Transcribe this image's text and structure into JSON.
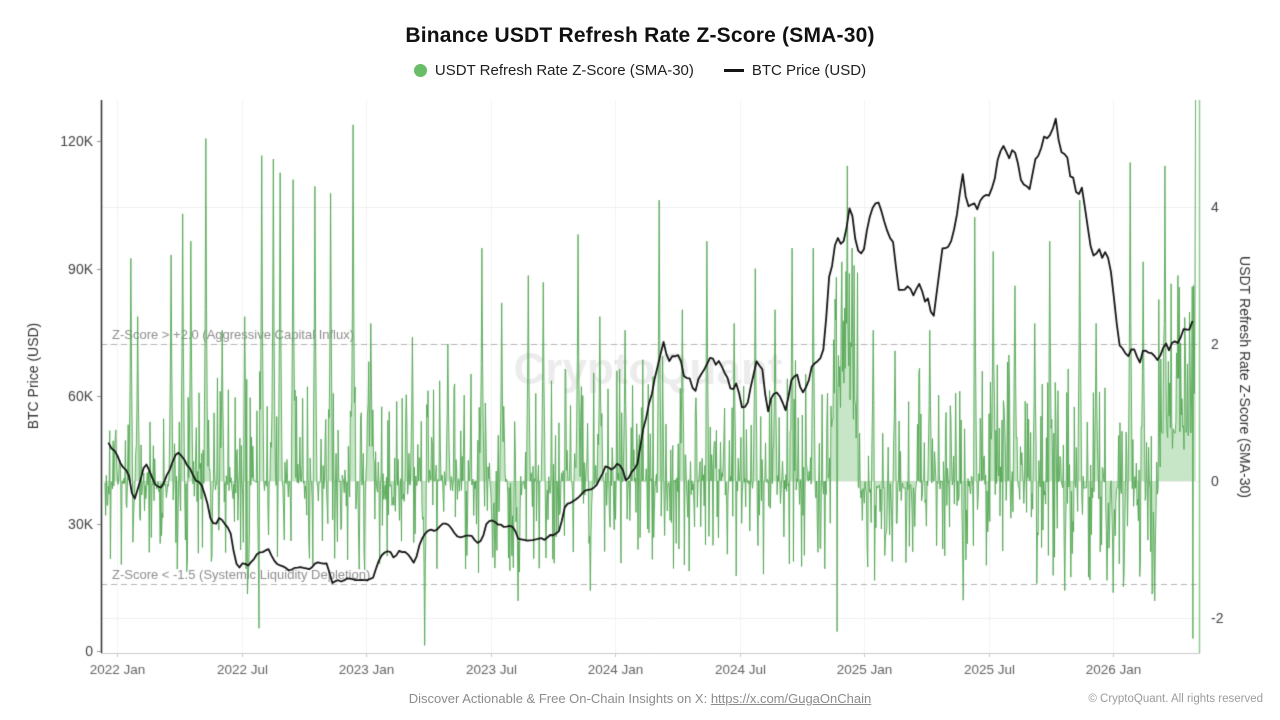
{
  "title": "Binance USDT Refresh Rate Z-Score (SMA-30)",
  "legend": {
    "zscore": {
      "label": "USDT Refresh Rate Z-Score (SMA-30)",
      "color": "#67bd68"
    },
    "btc": {
      "label": "BTC Price (USD)",
      "color": "#141414"
    }
  },
  "footer": {
    "prefix": "Discover Actionable & Free On-Chain Insights on X: ",
    "link": "https://x.com/GugaOnChain",
    "copyright": "© CryptoQuant. All rights reserved"
  },
  "watermark": "CryptoQuant",
  "colors": {
    "bar_stroke": "rgba(80,165,80,0.95)",
    "bar_fill": "rgba(130,200,130,0.45)",
    "btc_line": "#151515",
    "axis_left": "#333333",
    "axis_right": "#8fca8f",
    "axis_bottom": "#cccccc",
    "grid": "#f0f0f0",
    "threshold": "#b5b5b5",
    "threshold_text": "#909090",
    "tick_text": "#444444",
    "xtick_text": "#666666"
  },
  "chart_data": {
    "type": "mixed",
    "title": "Binance USDT Refresh Rate Z-Score (SMA-30)",
    "series": [
      {
        "name": "USDT Refresh Rate Z-Score (SMA-30)",
        "type": "area-bar",
        "axis": "right"
      },
      {
        "name": "BTC Price (USD)",
        "type": "line",
        "axis": "left"
      }
    ],
    "x_axis": {
      "start": "2021-12",
      "end": "2026-04",
      "tick_months": [
        0,
        6,
        12,
        18,
        24,
        30,
        36,
        42,
        48
      ],
      "tick_labels": [
        "2022 Jan",
        "2022 Jul",
        "2023 Jan",
        "2023 Jul",
        "2024 Jan",
        "2024 Jul",
        "2025 Jan",
        "2025 Jul",
        "2026 Jan"
      ]
    },
    "y_left": {
      "label": "BTC Price (USD)",
      "ticks": [
        {
          "v": 0,
          "label": "0"
        },
        {
          "v": 30,
          "label": "30K"
        },
        {
          "v": 60,
          "label": "60K"
        },
        {
          "v": 90,
          "label": "90K"
        },
        {
          "v": 120,
          "label": "120K"
        }
      ],
      "units": "K USD",
      "range_k": [
        0,
        129.6
      ]
    },
    "y_right": {
      "label": "USDT Refresh Rate Z-Score (SMA-30)",
      "ticks": [
        {
          "v": -2,
          "label": "-2"
        },
        {
          "v": 0,
          "label": "0"
        },
        {
          "v": 2,
          "label": "2"
        },
        {
          "v": 4,
          "label": "4"
        }
      ],
      "range": [
        -2.51,
        5.56
      ]
    },
    "thresholds": [
      {
        "z": 2.0,
        "label": "Z-Score > +2.0 (Aggressive Capital Influx)"
      },
      {
        "z": -1.5,
        "label": "Z-Score < -1.5 (Systemic Liquidity Depletion)"
      }
    ],
    "btc_price_anchors_months_kusd": [
      [
        -0.4,
        48.9
      ],
      [
        0,
        46.2
      ],
      [
        0.3,
        43
      ],
      [
        0.55,
        41.8
      ],
      [
        0.8,
        35.2
      ],
      [
        1.05,
        38.6
      ],
      [
        1.35,
        44.4
      ],
      [
        1.6,
        42.1
      ],
      [
        1.85,
        39.3
      ],
      [
        2.15,
        38.4
      ],
      [
        2.4,
        41.1
      ],
      [
        2.65,
        44.3
      ],
      [
        2.9,
        47.2
      ],
      [
        3.2,
        45.6
      ],
      [
        3.5,
        42.9
      ],
      [
        3.8,
        40.1
      ],
      [
        4.05,
        39.5
      ],
      [
        4.3,
        36
      ],
      [
        4.55,
        30.2
      ],
      [
        4.75,
        29.7
      ],
      [
        4.95,
        31.5
      ],
      [
        5.2,
        29.9
      ],
      [
        5.45,
        28.6
      ],
      [
        5.65,
        22.6
      ],
      [
        5.85,
        19.1
      ],
      [
        6.05,
        20.8
      ],
      [
        6.3,
        20
      ],
      [
        6.55,
        21.3
      ],
      [
        6.8,
        23.3
      ],
      [
        7.05,
        23.2
      ],
      [
        7.3,
        24
      ],
      [
        7.55,
        21.4
      ],
      [
        7.8,
        20.1
      ],
      [
        8.05,
        19.9
      ],
      [
        8.3,
        18.9
      ],
      [
        8.55,
        19.5
      ],
      [
        8.8,
        19.7
      ],
      [
        9.05,
        19.5
      ],
      [
        9.3,
        19.2
      ],
      [
        9.6,
        20.9
      ],
      [
        9.85,
        20.6
      ],
      [
        10.15,
        20.6
      ],
      [
        10.35,
        16
      ],
      [
        10.6,
        16.8
      ],
      [
        10.85,
        16.3
      ],
      [
        11.1,
        17.2
      ],
      [
        11.35,
        16.9
      ],
      [
        11.6,
        16.7
      ],
      [
        11.85,
        16.6
      ],
      [
        12.1,
        16.7
      ],
      [
        12.35,
        17.3
      ],
      [
        12.6,
        21.1
      ],
      [
        12.85,
        23.1
      ],
      [
        13.1,
        23.8
      ],
      [
        13.35,
        21.9
      ],
      [
        13.6,
        23.6
      ],
      [
        13.85,
        23.3
      ],
      [
        14.1,
        22.5
      ],
      [
        14.35,
        20.3
      ],
      [
        14.55,
        24.8
      ],
      [
        14.8,
        27.6
      ],
      [
        15.05,
        28.6
      ],
      [
        15.3,
        28.1
      ],
      [
        15.55,
        29.3
      ],
      [
        15.8,
        30.1
      ],
      [
        16.05,
        29.3
      ],
      [
        16.35,
        27.1
      ],
      [
        16.6,
        26.9
      ],
      [
        16.85,
        27.3
      ],
      [
        17.1,
        27
      ],
      [
        17.35,
        25.2
      ],
      [
        17.6,
        26.4
      ],
      [
        17.85,
        30.6
      ],
      [
        18.1,
        30.7
      ],
      [
        18.35,
        30
      ],
      [
        18.6,
        29.3
      ],
      [
        18.85,
        29.3
      ],
      [
        19.1,
        29.4
      ],
      [
        19.35,
        26.1
      ],
      [
        19.6,
        26.2
      ],
      [
        19.85,
        26
      ],
      [
        20.1,
        25.9
      ],
      [
        20.35,
        26.7
      ],
      [
        20.6,
        26.3
      ],
      [
        20.85,
        27.1
      ],
      [
        21.1,
        27.3
      ],
      [
        21.35,
        28.5
      ],
      [
        21.6,
        34.3
      ],
      [
        21.85,
        34.6
      ],
      [
        22.1,
        35.5
      ],
      [
        22.35,
        36.8
      ],
      [
        22.6,
        37.9
      ],
      [
        22.85,
        37.8
      ],
      [
        23.1,
        38.8
      ],
      [
        23.35,
        41.4
      ],
      [
        23.6,
        43.9
      ],
      [
        23.85,
        42.4
      ],
      [
        24.1,
        44.3
      ],
      [
        24.35,
        42.9
      ],
      [
        24.55,
        39.7
      ],
      [
        24.8,
        42.1
      ],
      [
        25.05,
        43.2
      ],
      [
        25.35,
        51.9
      ],
      [
        25.6,
        57.1
      ],
      [
        25.85,
        62.1
      ],
      [
        26.1,
        68.4
      ],
      [
        26.35,
        73.2
      ],
      [
        26.55,
        68
      ],
      [
        26.8,
        69.5
      ],
      [
        27.1,
        69.7
      ],
      [
        27.35,
        63.9
      ],
      [
        27.6,
        64.4
      ],
      [
        27.85,
        60.7
      ],
      [
        28.1,
        65
      ],
      [
        28.35,
        67
      ],
      [
        28.6,
        69.4
      ],
      [
        28.85,
        67.8
      ],
      [
        29.1,
        67.9
      ],
      [
        29.35,
        65
      ],
      [
        29.6,
        61.1
      ],
      [
        29.85,
        62.8
      ],
      [
        30.15,
        56.9
      ],
      [
        30.35,
        57.4
      ],
      [
        30.6,
        63.3
      ],
      [
        30.85,
        68.3
      ],
      [
        31.1,
        66.6
      ],
      [
        31.2,
        64.7
      ],
      [
        31.3,
        54
      ],
      [
        31.5,
        59.1
      ],
      [
        31.75,
        61.1
      ],
      [
        32,
        59.2
      ],
      [
        32.25,
        56.3
      ],
      [
        32.5,
        63.5
      ],
      [
        32.75,
        65.9
      ],
      [
        33,
        60.9
      ],
      [
        33.25,
        62.3
      ],
      [
        33.5,
        67.1
      ],
      [
        33.75,
        67.9
      ],
      [
        34,
        69.5
      ],
      [
        34.15,
        75.7
      ],
      [
        34.3,
        88.1
      ],
      [
        34.5,
        90.6
      ],
      [
        34.65,
        98.1
      ],
      [
        34.8,
        96
      ],
      [
        35,
        95.9
      ],
      [
        35.2,
        101.3
      ],
      [
        35.35,
        106.2
      ],
      [
        35.55,
        97.6
      ],
      [
        35.75,
        93.6
      ],
      [
        36,
        94.5
      ],
      [
        36.25,
        102.4
      ],
      [
        36.5,
        104.8
      ],
      [
        36.7,
        105.1
      ],
      [
        36.9,
        102.2
      ],
      [
        37.15,
        97.8
      ],
      [
        37.4,
        96.7
      ],
      [
        37.65,
        84.4
      ],
      [
        37.9,
        84.5
      ],
      [
        38.15,
        86.1
      ],
      [
        38.4,
        83.8
      ],
      [
        38.65,
        86.9
      ],
      [
        38.9,
        82.6
      ],
      [
        39.15,
        82.6
      ],
      [
        39.3,
        76.4
      ],
      [
        39.5,
        84.7
      ],
      [
        39.75,
        94.1
      ],
      [
        40,
        94.3
      ],
      [
        40.25,
        97.1
      ],
      [
        40.5,
        103.8
      ],
      [
        40.75,
        111.8
      ],
      [
        41,
        104.7
      ],
      [
        41.25,
        105.8
      ],
      [
        41.5,
        104
      ],
      [
        41.75,
        107.3
      ],
      [
        42,
        107.2
      ],
      [
        42.25,
        109
      ],
      [
        42.5,
        118.1
      ],
      [
        42.75,
        118.1
      ],
      [
        43,
        115.9
      ],
      [
        43.2,
        119.4
      ],
      [
        43.45,
        113.6
      ],
      [
        43.7,
        109.1
      ],
      [
        43.95,
        108.3
      ],
      [
        44.2,
        114.6
      ],
      [
        44.45,
        117.4
      ],
      [
        44.7,
        121.1
      ],
      [
        44.9,
        120.1
      ],
      [
        45.1,
        123.6
      ],
      [
        45.25,
        124.9
      ],
      [
        45.4,
        119.1
      ],
      [
        45.6,
        115.6
      ],
      [
        45.75,
        117.6
      ],
      [
        45.9,
        112.1
      ],
      [
        46.1,
        110.6
      ],
      [
        46.3,
        106.1
      ],
      [
        46.5,
        108.6
      ],
      [
        46.7,
        102.1
      ],
      [
        46.9,
        95.1
      ],
      [
        47.1,
        92.1
      ],
      [
        47.3,
        95.6
      ],
      [
        47.5,
        92.6
      ],
      [
        47.7,
        93.6
      ],
      [
        47.9,
        89.1
      ],
      [
        48.1,
        80.1
      ],
      [
        48.3,
        72.1
      ],
      [
        48.5,
        70.6
      ],
      [
        48.7,
        68.6
      ],
      [
        48.9,
        71.1
      ],
      [
        49.1,
        70.1
      ],
      [
        49.3,
        68.1
      ],
      [
        49.5,
        71.6
      ],
      [
        49.7,
        69.6
      ],
      [
        49.9,
        70.6
      ],
      [
        50.1,
        68.6
      ],
      [
        50.3,
        70.1
      ],
      [
        50.5,
        72.6
      ],
      [
        50.7,
        71.1
      ],
      [
        50.9,
        73.6
      ],
      [
        51.1,
        72.6
      ],
      [
        51.3,
        74.6
      ],
      [
        51.5,
        76.1
      ],
      [
        51.7,
        75.6
      ],
      [
        51.9,
        78.3
      ]
    ],
    "z_score": {
      "seed": 1337,
      "btc_jitter_seed": 77,
      "points_per_month": 30.44,
      "t_start_months": -0.58,
      "t_end_months": 52.0,
      "segments": [
        [
          -0.6,
          4,
          1.35,
          1.3,
          -0.05,
          0.45
        ],
        [
          4,
          6.5,
          1.6,
          1.45,
          -0.05,
          0.45
        ],
        [
          6.5,
          10,
          1.7,
          1.35,
          0,
          0.45
        ],
        [
          10,
          12.5,
          1.8,
          1.3,
          0,
          0.5
        ],
        [
          12.5,
          14.5,
          1.4,
          1.25,
          -0.05,
          0.45
        ],
        [
          14.5,
          17,
          1.5,
          1.3,
          0,
          0.45
        ],
        [
          17,
          21,
          1.6,
          1.35,
          0,
          0.45
        ],
        [
          21,
          24,
          1.7,
          1.3,
          0,
          0.5
        ],
        [
          24,
          27,
          1.9,
          1.3,
          0,
          0.5
        ],
        [
          27,
          30,
          1.7,
          1.4,
          0,
          0.5
        ],
        [
          30,
          34.4,
          1.8,
          1.5,
          0,
          0.48
        ],
        [
          34.4,
          35.7,
          2.3,
          0.4,
          0.9,
          0.8
        ],
        [
          35.7,
          38.5,
          1.3,
          1.45,
          -0.1,
          0.42
        ],
        [
          38.5,
          41,
          1.7,
          1.4,
          0,
          0.48
        ],
        [
          41,
          44,
          2.0,
          1.35,
          0,
          0.5
        ],
        [
          44,
          46,
          1.7,
          1.5,
          0,
          0.48
        ],
        [
          46,
          48,
          1.5,
          1.55,
          -0.1,
          0.42
        ],
        [
          48,
          50.2,
          1.5,
          1.6,
          -0.1,
          0.42
        ],
        [
          50.2,
          52.1,
          2.2,
          0.6,
          0.7,
          0.75
        ]
      ],
      "spikes": [
        [
          0.67,
          3.25
        ],
        [
          1.0,
          2.4
        ],
        [
          2.6,
          3.3
        ],
        [
          3.18,
          3.9
        ],
        [
          3.57,
          3.5
        ],
        [
          4.29,
          5.0
        ],
        [
          5.06,
          2.2
        ],
        [
          6.17,
          2.4
        ],
        [
          6.3,
          -1.65
        ],
        [
          6.84,
          -2.15
        ],
        [
          6.99,
          4.75
        ],
        [
          7.52,
          4.7
        ],
        [
          7.86,
          4.5
        ],
        [
          8.48,
          4.4
        ],
        [
          9.54,
          4.3
        ],
        [
          10.31,
          4.2
        ],
        [
          11.37,
          5.2
        ],
        [
          12.24,
          2.3
        ],
        [
          14.22,
          2.1
        ],
        [
          14.84,
          -2.4
        ],
        [
          15.95,
          2.0
        ],
        [
          17.59,
          3.4
        ],
        [
          18.55,
          2.6
        ],
        [
          19.33,
          -1.75
        ],
        [
          19.81,
          3.0
        ],
        [
          20.53,
          2.9
        ],
        [
          22.22,
          3.6
        ],
        [
          22.8,
          -1.6
        ],
        [
          23.28,
          2.4
        ],
        [
          24.48,
          2.2
        ],
        [
          26.12,
          4.1
        ],
        [
          27.23,
          2.5
        ],
        [
          28.43,
          3.5
        ],
        [
          29.73,
          2.3
        ],
        [
          30.75,
          3.1
        ],
        [
          31.71,
          2.5
        ],
        [
          32.53,
          3.4
        ],
        [
          33.54,
          3.4
        ],
        [
          34.7,
          -2.2
        ],
        [
          34.94,
          3.2
        ],
        [
          35.18,
          4.6
        ],
        [
          35.42,
          3.4
        ],
        [
          36.43,
          2.2
        ],
        [
          37.49,
          1.9
        ],
        [
          39.18,
          2.2
        ],
        [
          40.77,
          -1.74
        ],
        [
          41.35,
          3.85
        ],
        [
          42.22,
          3.35
        ],
        [
          43.28,
          2.85
        ],
        [
          44.24,
          2.3
        ],
        [
          44.96,
          3.5
        ],
        [
          45.69,
          -1.6
        ],
        [
          46.41,
          4.1
        ],
        [
          47.18,
          2.3
        ],
        [
          47.71,
          -1.45
        ],
        [
          48.0,
          -1.63
        ],
        [
          48.82,
          4.65
        ],
        [
          49.45,
          3.2
        ],
        [
          50.02,
          -1.75
        ],
        [
          50.51,
          4.6
        ],
        [
          51.13,
          3.0
        ],
        [
          51.85,
          -2.3
        ],
        [
          51.98,
          5.8
        ]
      ]
    }
  }
}
